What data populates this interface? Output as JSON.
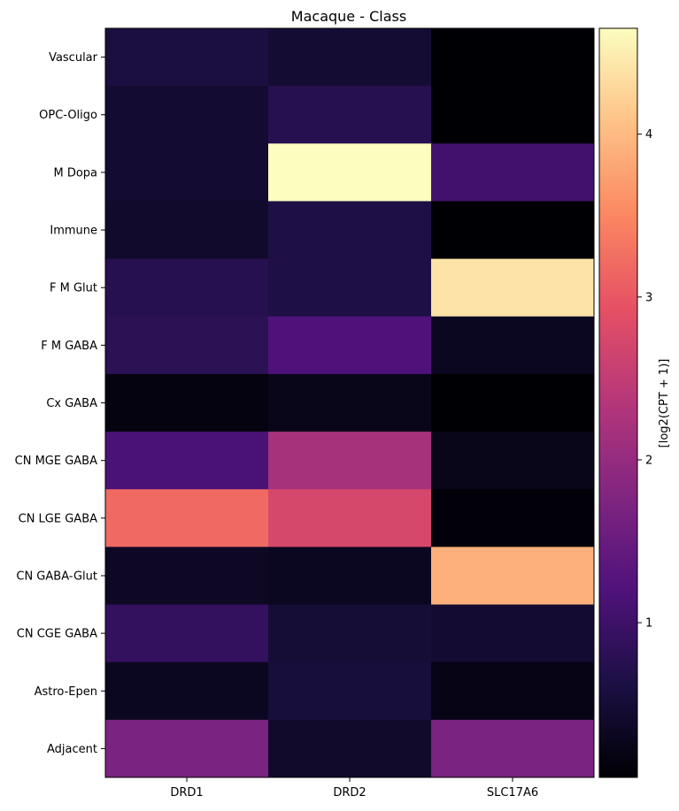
{
  "chart_data": {
    "type": "heatmap",
    "title": "Macaque - Class",
    "rows": [
      "Vascular",
      "OPC-Oligo",
      "M Dopa",
      "Immune",
      "F M Glut",
      "F M GABA",
      "Cx GABA",
      "CN MGE GABA",
      "CN LGE GABA",
      "CN GABA-Glut",
      "CN CGE GABA",
      "Astro-Epen",
      "Adjacent"
    ],
    "columns": [
      "DRD1",
      "DRD2",
      "SLC17A6"
    ],
    "values": [
      [
        0.6,
        0.48,
        0.05
      ],
      [
        0.45,
        0.75,
        0.05
      ],
      [
        0.45,
        4.65,
        1.05
      ],
      [
        0.42,
        0.65,
        0.05
      ],
      [
        0.75,
        0.65,
        4.4
      ],
      [
        0.8,
        1.2,
        0.3
      ],
      [
        0.15,
        0.25,
        0.05
      ],
      [
        1.15,
        2.2,
        0.25
      ],
      [
        3.2,
        2.75,
        0.1
      ],
      [
        0.35,
        0.3,
        3.9
      ],
      [
        0.9,
        0.5,
        0.45
      ],
      [
        0.3,
        0.55,
        0.2
      ],
      [
        1.7,
        0.4,
        1.7
      ]
    ],
    "colorbar": {
      "label": "[log2(CPT + 1)]",
      "range": [
        0.05,
        4.65
      ],
      "ticks": [
        1,
        2,
        3,
        4
      ],
      "colormap": "magma"
    }
  }
}
